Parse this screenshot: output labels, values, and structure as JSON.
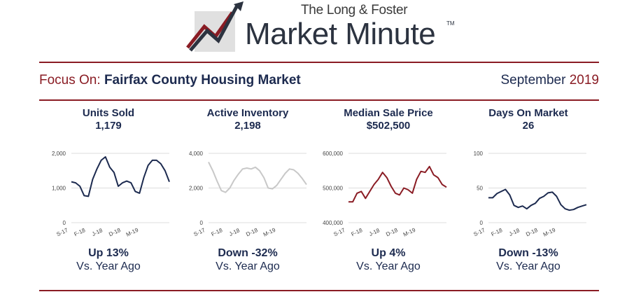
{
  "header": {
    "brand_small": "The Long & Foster",
    "brand_big": "Market Minute",
    "trademark": "TM",
    "focus_prefix": "Focus On:",
    "focus_title": "Fairfax County Housing Market",
    "month": "September",
    "year": "2019"
  },
  "colors": {
    "navy": "#1c2a4f",
    "brand_red": "#8a1c24",
    "inventory_gray": "#c8c8c8",
    "grid": "#dcdcdc"
  },
  "panels": [
    {
      "title": "Units Sold",
      "value": "1,179",
      "change": "Up 13%",
      "vs": "Vs. Year Ago"
    },
    {
      "title": "Active Inventory",
      "value": "2,198",
      "change": "Down -32%",
      "vs": "Vs. Year Ago"
    },
    {
      "title": "Median Sale Price",
      "value": "$502,500",
      "change": "Up 4%",
      "vs": "Vs. Year Ago"
    },
    {
      "title": "Days On Market",
      "value": "26",
      "change": "Down -13%",
      "vs": "Vs. Year Ago"
    }
  ],
  "chart_data": [
    {
      "type": "line",
      "x_ticks": [
        "S-17",
        "F-18",
        "J-18",
        "D-18",
        "M-19"
      ],
      "y_ticks": [
        "0",
        "1,000",
        "2,000"
      ],
      "ylim": [
        0,
        2000
      ],
      "color": "#1c2a4f",
      "values": [
        1180,
        1150,
        1050,
        780,
        760,
        1250,
        1550,
        1800,
        1900,
        1600,
        1450,
        1050,
        1150,
        1200,
        1150,
        900,
        850,
        1300,
        1650,
        1800,
        1800,
        1700,
        1500,
        1179
      ]
    },
    {
      "type": "line",
      "x_ticks": [
        "S-17",
        "F-18",
        "J-18",
        "D-18",
        "M-19"
      ],
      "y_ticks": [
        "0",
        "2,000",
        "4,000"
      ],
      "ylim": [
        0,
        4000
      ],
      "color": "#c8c8c8",
      "values": [
        3500,
        3000,
        2400,
        1850,
        1750,
        2000,
        2450,
        2800,
        3100,
        3150,
        3100,
        3200,
        3000,
        2600,
        2000,
        1950,
        2150,
        2500,
        2850,
        3100,
        3050,
        2850,
        2550,
        2198
      ]
    },
    {
      "type": "line",
      "x_ticks": [
        "S-17",
        "F-18",
        "J-18",
        "D-18",
        "M-19"
      ],
      "y_ticks": [
        "400,000",
        "500,000",
        "600,000"
      ],
      "ylim": [
        400000,
        600000
      ],
      "color": "#8a1c24",
      "values": [
        460000,
        460000,
        485000,
        490000,
        470000,
        490000,
        510000,
        525000,
        545000,
        530000,
        505000,
        485000,
        480000,
        500000,
        495000,
        485000,
        525000,
        548000,
        545000,
        562000,
        538000,
        530000,
        510000,
        502500
      ]
    },
    {
      "type": "line",
      "x_ticks": [
        "S-17",
        "F-18",
        "J-18",
        "D-18",
        "M-19"
      ],
      "y_ticks": [
        "0",
        "50",
        "100"
      ],
      "ylim": [
        0,
        100
      ],
      "color": "#1c2a4f",
      "values": [
        36,
        36,
        42,
        45,
        48,
        40,
        25,
        22,
        24,
        20,
        25,
        28,
        35,
        38,
        43,
        44,
        38,
        26,
        20,
        18,
        19,
        22,
        24,
        26
      ]
    }
  ]
}
